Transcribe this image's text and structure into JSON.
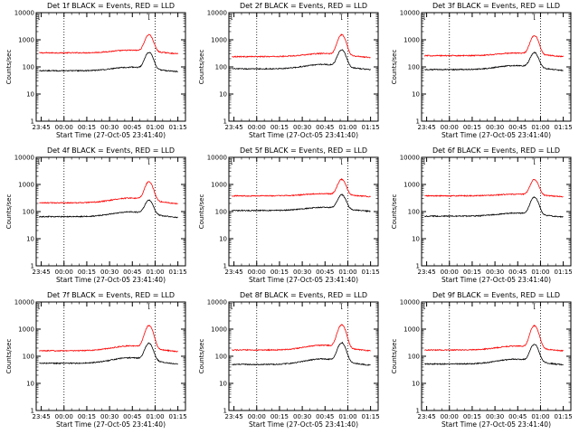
{
  "chart_data": [
    {
      "type": "line",
      "title": "Det 1f BLACK = Events, RED = LLD",
      "xlabel": "Start Time (27-Oct-05 23:41:40)",
      "ylabel": "Counts/sec",
      "yscale": "log",
      "ylim": [
        1,
        10000
      ],
      "x_ticks": [
        "23:45",
        "00:00",
        "00:15",
        "00:30",
        "00:45",
        "01:00",
        "01:15"
      ],
      "y_ticks": [
        "1",
        "10",
        "100",
        "1000",
        "10000"
      ],
      "marker": "[",
      "vlines": [
        "00:00",
        "01:00"
      ],
      "series": [
        {
          "name": "LLD",
          "color": "#ff0000",
          "baseline": 330,
          "bump": 1.25,
          "peak": 1500
        },
        {
          "name": "Events",
          "color": "#000000",
          "baseline": 72,
          "bump": 1.35,
          "peak": 330
        }
      ]
    },
    {
      "type": "line",
      "title": "Det 2f BLACK = Events, RED = LLD",
      "xlabel": "Start Time (27-Oct-05 23:41:40)",
      "ylabel": "Counts/sec",
      "yscale": "log",
      "ylim": [
        1,
        10000
      ],
      "x_ticks": [
        "23:45",
        "00:00",
        "00:15",
        "00:30",
        "00:45",
        "01:00",
        "01:15"
      ],
      "y_ticks": [
        "1",
        "10",
        "100",
        "1000",
        "10000"
      ],
      "marker": "[",
      "vlines": [
        "00:00",
        "01:00"
      ],
      "series": [
        {
          "name": "LLD",
          "color": "#ff0000",
          "baseline": 240,
          "bump": 1.3,
          "peak": 1500
        },
        {
          "name": "Events",
          "color": "#000000",
          "baseline": 85,
          "bump": 1.45,
          "peak": 400
        }
      ]
    },
    {
      "type": "line",
      "title": "Det 3f BLACK = Events, RED = LLD",
      "xlabel": "Start Time (27-Oct-05 23:41:40)",
      "ylabel": "Counts/sec",
      "yscale": "log",
      "ylim": [
        1,
        10000
      ],
      "x_ticks": [
        "23:45",
        "00:00",
        "00:15",
        "00:30",
        "00:45",
        "01:00",
        "01:15"
      ],
      "y_ticks": [
        "1",
        "10",
        "100",
        "1000",
        "10000"
      ],
      "marker": "[",
      "vlines": [
        "00:00",
        "01:00"
      ],
      "series": [
        {
          "name": "LLD",
          "color": "#ff0000",
          "baseline": 260,
          "bump": 1.25,
          "peak": 1400
        },
        {
          "name": "Events",
          "color": "#000000",
          "baseline": 80,
          "bump": 1.4,
          "peak": 320
        }
      ]
    },
    {
      "type": "line",
      "title": "Det 4f BLACK = Events, RED = LLD",
      "xlabel": "Start Time (27-Oct-05 23:41:40)",
      "ylabel": "Counts/sec",
      "yscale": "log",
      "ylim": [
        1,
        10000
      ],
      "x_ticks": [
        "23:45",
        "00:00",
        "00:15",
        "00:30",
        "00:45",
        "01:00",
        "01:15"
      ],
      "y_ticks": [
        "1",
        "10",
        "100",
        "1000",
        "10000"
      ],
      "marker": "[",
      "vlines": [
        "00:00",
        "01:00"
      ],
      "series": [
        {
          "name": "LLD",
          "color": "#ff0000",
          "baseline": 210,
          "bump": 1.5,
          "peak": 1200
        },
        {
          "name": "Events",
          "color": "#000000",
          "baseline": 65,
          "bump": 1.5,
          "peak": 250
        }
      ]
    },
    {
      "type": "line",
      "title": "Det 5f BLACK = Events, RED = LLD",
      "xlabel": "Start Time (27-Oct-05 23:41:40)",
      "ylabel": "Counts/sec",
      "yscale": "log",
      "ylim": [
        1,
        10000
      ],
      "x_ticks": [
        "23:45",
        "00:00",
        "00:15",
        "00:30",
        "00:45",
        "01:00",
        "01:15"
      ],
      "y_ticks": [
        "1",
        "10",
        "100",
        "1000",
        "10000"
      ],
      "marker": "[",
      "vlines": [
        "00:00",
        "01:00"
      ],
      "series": [
        {
          "name": "LLD",
          "color": "#ff0000",
          "baseline": 380,
          "bump": 1.2,
          "peak": 1500
        },
        {
          "name": "Events",
          "color": "#000000",
          "baseline": 110,
          "bump": 1.3,
          "peak": 400
        }
      ]
    },
    {
      "type": "line",
      "title": "Det 6f BLACK = Events, RED = LLD",
      "xlabel": "Start Time (27-Oct-05 23:41:40)",
      "ylabel": "Counts/sec",
      "yscale": "log",
      "ylim": [
        1,
        10000
      ],
      "x_ticks": [
        "23:45",
        "00:00",
        "00:15",
        "00:30",
        "00:45",
        "01:00",
        "01:15"
      ],
      "y_ticks": [
        "1",
        "10",
        "100",
        "1000",
        "10000"
      ],
      "marker": "[",
      "vlines": [
        "00:00",
        "01:00"
      ],
      "series": [
        {
          "name": "LLD",
          "color": "#ff0000",
          "baseline": 380,
          "bump": 1.15,
          "peak": 1500
        },
        {
          "name": "Events",
          "color": "#000000",
          "baseline": 68,
          "bump": 1.3,
          "peak": 330
        }
      ]
    },
    {
      "type": "line",
      "title": "Det 7f BLACK = Events, RED = LLD",
      "xlabel": "Start Time (27-Oct-05 23:41:40)",
      "ylabel": "Counts/sec",
      "yscale": "log",
      "ylim": [
        1,
        10000
      ],
      "x_ticks": [
        "23:45",
        "00:00",
        "00:15",
        "00:30",
        "00:45",
        "01:00",
        "01:15"
      ],
      "y_ticks": [
        "1",
        "10",
        "100",
        "1000",
        "10000"
      ],
      "marker": "[",
      "vlines": [
        "00:00",
        "01:00"
      ],
      "series": [
        {
          "name": "LLD",
          "color": "#ff0000",
          "baseline": 160,
          "bump": 1.5,
          "peak": 1300
        },
        {
          "name": "Events",
          "color": "#000000",
          "baseline": 55,
          "bump": 1.6,
          "peak": 280
        }
      ]
    },
    {
      "type": "line",
      "title": "Det 8f BLACK = Events, RED = LLD",
      "xlabel": "Start Time (27-Oct-05 23:41:40)",
      "ylabel": "Counts/sec",
      "yscale": "log",
      "ylim": [
        1,
        10000
      ],
      "x_ticks": [
        "23:45",
        "00:00",
        "00:15",
        "00:30",
        "00:45",
        "01:00",
        "01:15"
      ],
      "y_ticks": [
        "1",
        "10",
        "100",
        "1000",
        "10000"
      ],
      "marker": "[",
      "vlines": [
        "00:00",
        "01:00"
      ],
      "series": [
        {
          "name": "LLD",
          "color": "#ff0000",
          "baseline": 170,
          "bump": 1.5,
          "peak": 1400
        },
        {
          "name": "Events",
          "color": "#000000",
          "baseline": 50,
          "bump": 1.6,
          "peak": 300
        }
      ]
    },
    {
      "type": "line",
      "title": "Det 9f BLACK = Events, RED = LLD",
      "xlabel": "Start Time (27-Oct-05 23:41:40)",
      "ylabel": "Counts/sec",
      "yscale": "log",
      "ylim": [
        1,
        10000
      ],
      "x_ticks": [
        "23:45",
        "00:00",
        "00:15",
        "00:30",
        "00:45",
        "01:00",
        "01:15"
      ],
      "y_ticks": [
        "1",
        "10",
        "100",
        "1000",
        "10000"
      ],
      "marker": "[",
      "vlines": [
        "00:00",
        "01:00"
      ],
      "series": [
        {
          "name": "LLD",
          "color": "#ff0000",
          "baseline": 170,
          "bump": 1.4,
          "peak": 1300
        },
        {
          "name": "Events",
          "color": "#000000",
          "baseline": 52,
          "bump": 1.5,
          "peak": 260
        }
      ]
    }
  ]
}
